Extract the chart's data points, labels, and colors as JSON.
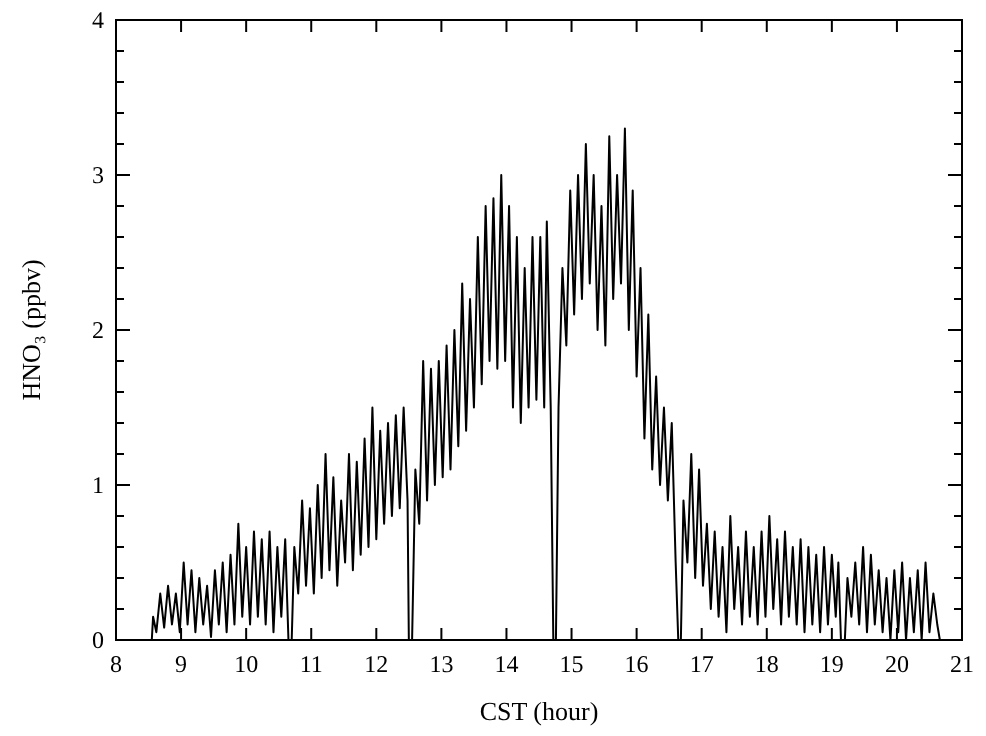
{
  "chart_data": {
    "type": "line",
    "xlabel": "CST (hour)",
    "ylabel": "HNO₃ (ppbv)",
    "xlim": [
      8,
      21
    ],
    "xticks": [
      8,
      9,
      10,
      11,
      12,
      13,
      14,
      15,
      16,
      17,
      18,
      19,
      20,
      21
    ],
    "ylim": [
      0,
      4
    ],
    "yticks": [
      0,
      {
        "value": 0.2,
        "label": null
      },
      {
        "value": 0.4,
        "label": null
      },
      {
        "value": 0.6,
        "label": null
      },
      {
        "value": 0.8,
        "label": null
      },
      1,
      {
        "value": 1.2,
        "label": null
      },
      {
        "value": 1.4,
        "label": null
      },
      {
        "value": 1.6,
        "label": null
      },
      {
        "value": 1.8,
        "label": null
      },
      2,
      {
        "value": 2.2,
        "label": null
      },
      {
        "value": 2.4,
        "label": null
      },
      {
        "value": 2.6,
        "label": null
      },
      {
        "value": 2.8,
        "label": null
      },
      3,
      {
        "value": 3.2,
        "label": null
      },
      {
        "value": 3.4,
        "label": null
      },
      {
        "value": 3.6,
        "label": null
      },
      {
        "value": 3.8,
        "label": null
      },
      4
    ],
    "grid": false,
    "marker": "none",
    "line_style": "solid",
    "series": [
      {
        "color": "#000000",
        "x": [
          8.55,
          8.57,
          8.62,
          8.68,
          8.74,
          8.8,
          8.86,
          8.92,
          8.98,
          9.04,
          9.1,
          9.16,
          9.22,
          9.28,
          9.34,
          9.4,
          9.46,
          9.52,
          9.58,
          9.64,
          9.7,
          9.76,
          9.82,
          9.88,
          9.94,
          10.0,
          10.06,
          10.12,
          10.18,
          10.24,
          10.3,
          10.36,
          10.42,
          10.48,
          10.54,
          10.6,
          10.65,
          10.7,
          10.74,
          10.8,
          10.86,
          10.92,
          10.98,
          11.04,
          11.1,
          11.16,
          11.22,
          11.28,
          11.34,
          11.4,
          11.46,
          11.52,
          11.58,
          11.64,
          11.7,
          11.76,
          11.82,
          11.88,
          11.94,
          12.0,
          12.06,
          12.12,
          12.18,
          12.24,
          12.3,
          12.36,
          12.42,
          12.48,
          12.5,
          12.55,
          12.6,
          12.66,
          12.72,
          12.78,
          12.84,
          12.9,
          12.96,
          13.02,
          13.08,
          13.14,
          13.2,
          13.26,
          13.32,
          13.38,
          13.44,
          13.5,
          13.56,
          13.62,
          13.68,
          13.74,
          13.8,
          13.86,
          13.92,
          13.98,
          14.04,
          14.1,
          14.16,
          14.22,
          14.28,
          14.34,
          14.4,
          14.46,
          14.52,
          14.58,
          14.62,
          14.68,
          14.72,
          14.76,
          14.8,
          14.86,
          14.92,
          14.98,
          15.04,
          15.1,
          15.16,
          15.22,
          15.28,
          15.34,
          15.4,
          15.46,
          15.52,
          15.58,
          15.64,
          15.7,
          15.76,
          15.82,
          15.88,
          15.94,
          16.0,
          16.06,
          16.12,
          16.18,
          16.24,
          16.3,
          16.36,
          16.42,
          16.48,
          16.54,
          16.6,
          16.64,
          16.68,
          16.72,
          16.78,
          16.84,
          16.9,
          16.96,
          17.02,
          17.08,
          17.14,
          17.2,
          17.26,
          17.32,
          17.38,
          17.44,
          17.5,
          17.56,
          17.62,
          17.68,
          17.74,
          17.8,
          17.86,
          17.92,
          17.98,
          18.04,
          18.1,
          18.16,
          18.22,
          18.28,
          18.34,
          18.4,
          18.46,
          18.52,
          18.58,
          18.64,
          18.7,
          18.76,
          18.82,
          18.88,
          18.94,
          19.0,
          19.06,
          19.1,
          19.14,
          19.2,
          19.24,
          19.3,
          19.36,
          19.42,
          19.48,
          19.54,
          19.6,
          19.66,
          19.72,
          19.78,
          19.84,
          19.9,
          19.96,
          20.02,
          20.08,
          20.14,
          20.2,
          20.26,
          20.32,
          20.38,
          20.44,
          20.5,
          20.56,
          20.62,
          20.66
        ],
        "values": [
          0,
          0.15,
          0.05,
          0.3,
          0.08,
          0.35,
          0.1,
          0.3,
          0.05,
          0.5,
          0.1,
          0.45,
          0.05,
          0.4,
          0.1,
          0.35,
          0.02,
          0.45,
          0.1,
          0.5,
          0.05,
          0.55,
          0.1,
          0.75,
          0.15,
          0.6,
          0.1,
          0.7,
          0.15,
          0.65,
          0.1,
          0.7,
          0.05,
          0.6,
          0.15,
          0.65,
          0,
          0,
          0.6,
          0.3,
          0.9,
          0.35,
          0.85,
          0.3,
          1.0,
          0.4,
          1.2,
          0.45,
          1.05,
          0.35,
          0.9,
          0.5,
          1.2,
          0.45,
          1.15,
          0.55,
          1.3,
          0.6,
          1.5,
          0.65,
          1.35,
          0.75,
          1.4,
          0.8,
          1.45,
          0.85,
          1.5,
          0.9,
          0,
          0,
          1.1,
          0.75,
          1.8,
          0.9,
          1.75,
          1.0,
          1.8,
          1.05,
          1.9,
          1.1,
          2.0,
          1.25,
          2.3,
          1.35,
          2.2,
          1.5,
          2.6,
          1.65,
          2.8,
          1.8,
          2.85,
          1.75,
          3.0,
          1.8,
          2.8,
          1.5,
          2.6,
          1.4,
          2.4,
          1.5,
          2.6,
          1.55,
          2.6,
          1.5,
          2.7,
          1.5,
          0,
          0,
          1.5,
          2.4,
          1.9,
          2.9,
          2.1,
          3.0,
          2.2,
          3.2,
          2.3,
          3.0,
          2.0,
          2.8,
          1.9,
          3.25,
          2.2,
          3.0,
          2.3,
          3.3,
          2.0,
          2.9,
          1.7,
          2.4,
          1.3,
          2.1,
          1.1,
          1.7,
          1.0,
          1.5,
          0.9,
          1.4,
          0.5,
          0,
          0,
          0.9,
          0.5,
          1.2,
          0.4,
          1.1,
          0.35,
          0.75,
          0.2,
          0.7,
          0.15,
          0.6,
          0.05,
          0.8,
          0.2,
          0.6,
          0.1,
          0.7,
          0.15,
          0.6,
          0.1,
          0.7,
          0.15,
          0.8,
          0.2,
          0.65,
          0.1,
          0.7,
          0.15,
          0.6,
          0.1,
          0.65,
          0.05,
          0.6,
          0.1,
          0.55,
          0.05,
          0.6,
          0.1,
          0.55,
          0.15,
          0.5,
          0,
          0,
          0.4,
          0.15,
          0.5,
          0.1,
          0.6,
          0.05,
          0.55,
          0.1,
          0.45,
          0.05,
          0.4,
          0,
          0.45,
          0.05,
          0.5,
          0,
          0.4,
          0.05,
          0.45,
          0,
          0.5,
          0.05,
          0.3,
          0.1,
          0
        ]
      }
    ]
  }
}
